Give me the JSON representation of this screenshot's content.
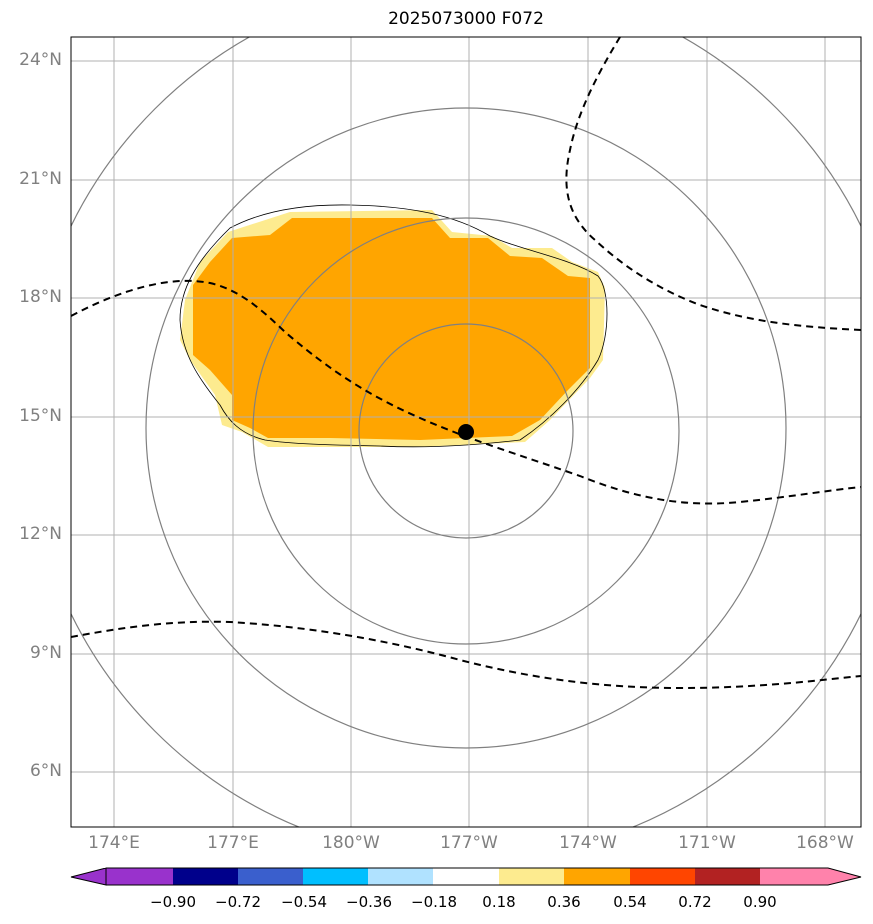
{
  "title": "2025073000 F072",
  "lat_labels": [
    "24°N",
    "21°N",
    "18°N",
    "15°N",
    "12°N",
    "9°N",
    "6°N"
  ],
  "lon_labels": [
    "174°E",
    "177°E",
    "180°W",
    "177°W",
    "174°W",
    "171°W",
    "168°W"
  ],
  "colorbar": {
    "labels": [
      "−0.90",
      "−0.72",
      "−0.54",
      "−0.36",
      "−0.18",
      "0.18",
      "0.36",
      "0.54",
      "0.72",
      "0.90"
    ],
    "colors": [
      "#9932cc",
      "#00008b",
      "#3a5fcd",
      "#00bfff",
      "#b0e2ff",
      "#ffffff",
      "#fdeb8f",
      "#ffa500",
      "#ff4500",
      "#b22222",
      "#ff82ab"
    ]
  },
  "colors": {
    "shading_light": "#fdeb8f",
    "shading_dark": "#ffa500",
    "grid": "#b0b0b0",
    "range_rings": "#808080",
    "dashed_contour": "#000000",
    "center_marker": "#000000"
  },
  "center_marker": {
    "lat": 14.6,
    "lon": -177.0
  }
}
